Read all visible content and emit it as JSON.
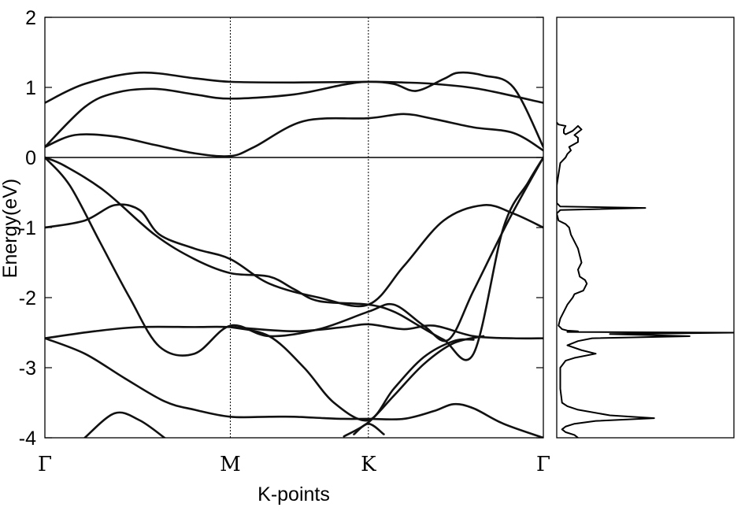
{
  "chart_data": [
    {
      "type": "line",
      "title": "",
      "xlabel": "K-points",
      "ylabel": "Energy(eV)",
      "ylim": [
        -4,
        2
      ],
      "yticks": [
        2,
        1,
        0,
        -1,
        -2,
        -3,
        -4
      ],
      "ytick_labels": [
        "2",
        "1",
        "0",
        "-1",
        "-2",
        "-3",
        "-4"
      ],
      "xlim": [
        0,
        1
      ],
      "kpoints": [
        {
          "label": "Γ",
          "x": 0.0
        },
        {
          "label": "M",
          "x": 0.372
        },
        {
          "label": "K",
          "x": 0.649
        },
        {
          "label": "Γ",
          "x": 1.0
        }
      ],
      "fermi_level": 0,
      "grid": false,
      "series": [
        {
          "x": [
            0,
            0.08,
            0.19,
            0.3,
            0.372,
            0.5,
            0.649,
            0.72,
            0.78,
            0.87,
            1.0
          ],
          "values": [
            0.78,
            1.05,
            1.21,
            1.13,
            1.08,
            1.07,
            1.08,
            1.07,
            1.05,
            0.98,
            0.78
          ]
        },
        {
          "x": [
            0,
            0.08,
            0.14,
            0.22,
            0.3,
            0.372,
            0.5,
            0.6,
            0.649,
            0.7,
            0.745,
            0.8,
            0.83,
            0.88,
            0.94,
            1.0
          ],
          "values": [
            0.15,
            0.72,
            0.92,
            0.98,
            0.9,
            0.84,
            0.9,
            1.04,
            1.08,
            1.05,
            0.95,
            1.12,
            1.21,
            1.17,
            1.0,
            0.15
          ]
        },
        {
          "x": [
            0,
            0.06,
            0.14,
            0.22,
            0.3,
            0.372,
            0.42,
            0.52,
            0.649,
            0.72,
            0.78,
            0.86,
            0.94,
            1.0
          ],
          "values": [
            0.15,
            0.32,
            0.3,
            0.18,
            0.06,
            0.02,
            0.15,
            0.52,
            0.56,
            0.62,
            0.55,
            0.43,
            0.35,
            0.1
          ]
        },
        {
          "x": [
            0,
            0.08,
            0.14,
            0.19,
            0.23,
            0.3,
            0.372,
            0.45,
            0.55,
            0.649,
            0.72,
            0.8,
            0.88,
            0.94,
            1.0
          ],
          "values": [
            -1.0,
            -0.9,
            -0.68,
            -0.75,
            -1.1,
            -1.3,
            -1.45,
            -1.8,
            -2.0,
            -2.1,
            -1.55,
            -0.9,
            -0.68,
            -0.8,
            -1.0
          ]
        },
        {
          "x": [
            0,
            0.04,
            0.12,
            0.22,
            0.3,
            0.372,
            0.45,
            0.5,
            0.55,
            0.649,
            0.7,
            0.75,
            0.8,
            0.86,
            0.92,
            0.97,
            1.0
          ],
          "values": [
            0.0,
            -0.12,
            -0.48,
            -1.1,
            -1.45,
            -1.65,
            -1.7,
            -1.88,
            -2.05,
            -2.1,
            -2.2,
            -2.4,
            -2.6,
            -2.8,
            -1.0,
            -0.35,
            0.0
          ]
        },
        {
          "x": [
            0,
            0.05,
            0.11,
            0.17,
            0.23,
            0.3,
            0.372,
            0.45,
            0.55,
            0.649,
            0.7,
            0.76,
            0.81,
            0.86,
            0.93,
            1.0
          ],
          "values": [
            0.0,
            -0.4,
            -1.2,
            -2.0,
            -2.7,
            -2.8,
            -2.4,
            -2.55,
            -2.45,
            -2.2,
            -2.1,
            -2.4,
            -2.6,
            -1.9,
            -0.9,
            0.0
          ]
        },
        {
          "x": [
            0,
            0.1,
            0.19,
            0.3,
            0.372,
            0.5,
            0.6,
            0.649,
            0.72,
            0.78,
            0.86,
            0.94,
            1.0
          ],
          "values": [
            -2.58,
            -2.48,
            -2.42,
            -2.42,
            -2.42,
            -2.48,
            -2.42,
            -2.38,
            -2.45,
            -2.4,
            -2.55,
            -2.58,
            -2.58
          ]
        },
        {
          "x": [
            0,
            0.08,
            0.16,
            0.24,
            0.3,
            0.372,
            0.45,
            0.5,
            0.56,
            0.6,
            0.649,
            0.72,
            0.78,
            0.82,
            0.86,
            0.92,
            1.0
          ],
          "values": [
            -2.58,
            -2.8,
            -3.15,
            -3.48,
            -3.6,
            -3.7,
            -3.7,
            -3.7,
            -3.72,
            -3.73,
            -3.73,
            -3.73,
            -3.62,
            -3.52,
            -3.58,
            -3.8,
            -4.0
          ]
        },
        {
          "x": [
            0.372,
            0.45,
            0.52,
            0.58,
            0.649,
            0.7,
            0.76,
            0.82,
            0.86
          ],
          "values": [
            -2.42,
            -2.55,
            -3.0,
            -3.5,
            -3.75,
            -3.3,
            -2.85,
            -2.62,
            -2.6
          ]
        },
        {
          "x": [
            0.6,
            0.649,
            0.7,
            0.76,
            0.82,
            0.88
          ],
          "values": [
            -3.98,
            -3.78,
            -3.4,
            -2.95,
            -2.65,
            -2.55
          ]
        },
        {
          "x": [
            0.08,
            0.14,
            0.19,
            0.24
          ],
          "values": [
            -4.0,
            -3.65,
            -3.75,
            -4.0
          ]
        },
        {
          "x": [
            0.62,
            0.649,
            0.68
          ],
          "values": [
            -3.95,
            -3.8,
            -3.95
          ]
        }
      ]
    },
    {
      "type": "line",
      "title": "",
      "xlabel": "",
      "ylabel": "",
      "ylim": [
        -4,
        2
      ],
      "xlim": [
        0,
        1
      ],
      "series": [
        {
          "x": [
            0.0,
            0.01,
            0.03,
            0.05,
            0.04,
            0.04,
            0.05,
            0.09,
            0.12,
            0.14,
            0.1,
            0.12,
            0.12,
            0.07,
            0.08,
            0.06,
            0.05,
            0.02,
            0.0,
            0.0,
            0.02,
            0.5,
            0.02,
            0.0,
            0.01,
            0.05,
            0.07,
            0.08,
            0.1,
            0.12,
            0.13,
            0.14,
            0.12,
            0.13,
            0.16,
            0.17,
            0.16,
            0.15,
            0.1,
            0.09,
            0.06,
            0.04,
            0.02,
            0.01,
            0.03,
            0.06,
            0.12,
            0.06,
            1.0,
            0.3,
            0.75,
            0.2,
            0.12,
            0.06,
            0.14,
            0.22,
            0.1,
            0.05,
            0.02,
            0.02,
            0.03,
            0.06,
            0.12,
            0.3,
            0.55,
            0.22,
            0.1,
            0.05,
            0.03,
            0.05,
            0.1,
            0.12
          ],
          "values": [
            0.5,
            0.47,
            0.46,
            0.45,
            0.4,
            0.35,
            0.33,
            0.38,
            0.45,
            0.4,
            0.32,
            0.28,
            0.22,
            0.15,
            0.1,
            0.05,
            0.0,
            -0.08,
            -0.4,
            -0.65,
            -0.7,
            -0.72,
            -0.75,
            -0.8,
            -0.9,
            -0.95,
            -1.0,
            -1.1,
            -1.2,
            -1.3,
            -1.4,
            -1.5,
            -1.6,
            -1.7,
            -1.75,
            -1.8,
            -1.85,
            -1.9,
            -1.95,
            -2.0,
            -2.1,
            -2.2,
            -2.3,
            -2.4,
            -2.45,
            -2.47,
            -2.48,
            -2.49,
            -2.5,
            -2.52,
            -2.55,
            -2.58,
            -2.62,
            -2.68,
            -2.75,
            -2.8,
            -2.86,
            -2.9,
            -3.0,
            -3.3,
            -3.5,
            -3.55,
            -3.6,
            -3.68,
            -3.72,
            -3.76,
            -3.8,
            -3.84,
            -3.88,
            -3.92,
            -3.96,
            -4.0
          ]
        }
      ]
    }
  ]
}
